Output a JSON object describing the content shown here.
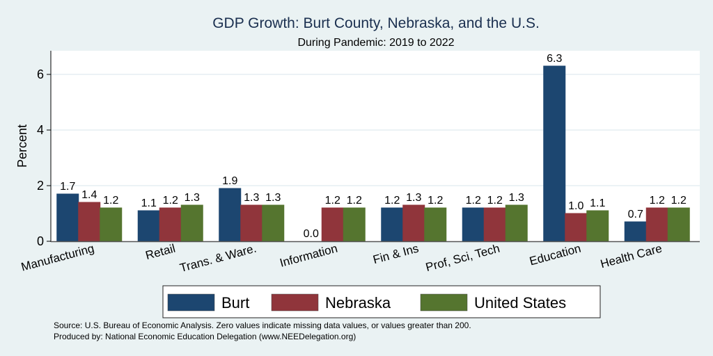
{
  "chart_data": {
    "type": "bar",
    "title": "GDP Growth: Burt County, Nebraska, and the U.S.",
    "subtitle": "During Pandemic: 2019 to 2022",
    "xlabel": "",
    "ylabel": "Percent",
    "ylim": [
      0,
      6.8
    ],
    "yticks": [
      0,
      2,
      4,
      6
    ],
    "ytick_labels": [
      "0",
      "2",
      "4",
      "6"
    ],
    "grid": true,
    "categories": [
      "Manufacturing",
      "Retail",
      "Trans. & Ware.",
      "Information",
      "Fin & Ins",
      "Prof, Sci, Tech",
      "Education",
      "Health Care"
    ],
    "series": [
      {
        "name": "Burt",
        "color": "#1c4670",
        "values": [
          1.7,
          1.1,
          1.9,
          0.0,
          1.2,
          1.2,
          6.3,
          0.7
        ]
      },
      {
        "name": "Nebraska",
        "color": "#90353b",
        "values": [
          1.4,
          1.2,
          1.3,
          1.2,
          1.3,
          1.2,
          1.0,
          1.2
        ]
      },
      {
        "name": "United States",
        "color": "#55752f",
        "values": [
          1.2,
          1.3,
          1.3,
          1.2,
          1.2,
          1.3,
          1.1,
          1.2
        ]
      }
    ],
    "data_labels": [
      [
        "1.7",
        "1.1",
        "1.9",
        "0.0",
        "1.2",
        "1.2",
        "6.3",
        "0.7"
      ],
      [
        "1.4",
        "1.2",
        "1.3",
        "1.2",
        "1.3",
        "1.2",
        "1.0",
        "1.2"
      ],
      [
        "1.2",
        "1.3",
        "1.3",
        "1.2",
        "1.2",
        "1.3",
        "1.1",
        "1.2"
      ]
    ],
    "legend_position": "bottom",
    "notes": [
      "Source: U.S. Bureau of Economic Analysis. Zero values indicate missing data values, or values greater than 200.",
      "Produced by: National Economic Education Delegation (www.NEEDelegation.org)"
    ]
  }
}
